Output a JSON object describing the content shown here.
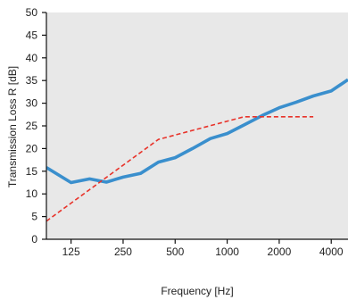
{
  "chart_data": {
    "type": "line",
    "xlabel": "Frequency [Hz]",
    "ylabel": "Transmission Loss R [dB]",
    "x_scale": "log",
    "x_ticks": [
      {
        "value": 125,
        "label": "125"
      },
      {
        "value": 250,
        "label": "250"
      },
      {
        "value": 500,
        "label": "500"
      },
      {
        "value": 1000,
        "label": "1000"
      },
      {
        "value": 2000,
        "label": "2000"
      },
      {
        "value": 4000,
        "label": "4000"
      }
    ],
    "xlim": [
      90,
      5000
    ],
    "ylim": [
      0,
      50
    ],
    "y_ticks": [
      "0",
      "5",
      "10",
      "15",
      "20",
      "25",
      "30",
      "35",
      "40",
      "45",
      "50"
    ],
    "grid": false,
    "legend": "none",
    "background_color": "#e8e8e8",
    "series": [
      {
        "style": "solid",
        "color": "#3a8fcd",
        "points": [
          {
            "x": 90,
            "y": 15.8
          },
          {
            "x": 125,
            "y": 12.5
          },
          {
            "x": 160,
            "y": 13.3
          },
          {
            "x": 200,
            "y": 12.6
          },
          {
            "x": 250,
            "y": 13.7
          },
          {
            "x": 315,
            "y": 14.5
          },
          {
            "x": 400,
            "y": 17.0
          },
          {
            "x": 500,
            "y": 18.0
          },
          {
            "x": 630,
            "y": 20.0
          },
          {
            "x": 800,
            "y": 22.2
          },
          {
            "x": 1000,
            "y": 23.3
          },
          {
            "x": 1250,
            "y": 25.2
          },
          {
            "x": 1600,
            "y": 27.3
          },
          {
            "x": 2000,
            "y": 29.0
          },
          {
            "x": 2500,
            "y": 30.2
          },
          {
            "x": 3150,
            "y": 31.6
          },
          {
            "x": 4000,
            "y": 32.7
          },
          {
            "x": 5000,
            "y": 35.2
          }
        ]
      },
      {
        "style": "dashed",
        "color": "#e8332a",
        "points": [
          {
            "x": 90,
            "y": 4.0
          },
          {
            "x": 400,
            "y": 22.0
          },
          {
            "x": 1250,
            "y": 27.0
          },
          {
            "x": 3150,
            "y": 27.0
          }
        ]
      }
    ]
  }
}
